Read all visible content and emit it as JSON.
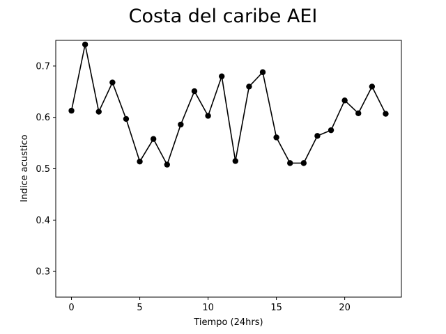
{
  "chart_data": {
    "type": "line",
    "title": "Costa del caribe AEI",
    "xlabel": "Tiempo (24hrs)",
    "ylabel": "Indice acustico",
    "xlim": [
      -1.15,
      24.15
    ],
    "ylim": [
      0.25,
      0.75
    ],
    "xticks": [
      0,
      5,
      10,
      15,
      20
    ],
    "xtick_labels": [
      "0",
      "5",
      "10",
      "15",
      "20"
    ],
    "yticks": [
      0.3,
      0.4,
      0.5,
      0.6,
      0.7
    ],
    "ytick_labels": [
      "0.3",
      "0.4",
      "0.5",
      "0.6",
      "0.7"
    ],
    "grid": false,
    "legend": false,
    "x": [
      0,
      1,
      2,
      3,
      4,
      5,
      6,
      7,
      8,
      9,
      10,
      11,
      12,
      13,
      14,
      15,
      16,
      17,
      18,
      19,
      20,
      21,
      22,
      23
    ],
    "series": [
      {
        "color": "#000000",
        "marker": "circle",
        "values": [
          0.613,
          0.742,
          0.611,
          0.668,
          0.597,
          0.514,
          0.558,
          0.508,
          0.586,
          0.651,
          0.603,
          0.68,
          0.515,
          0.66,
          0.688,
          0.561,
          0.511,
          0.511,
          0.564,
          0.575,
          0.633,
          0.608,
          0.66,
          0.607
        ]
      }
    ]
  }
}
